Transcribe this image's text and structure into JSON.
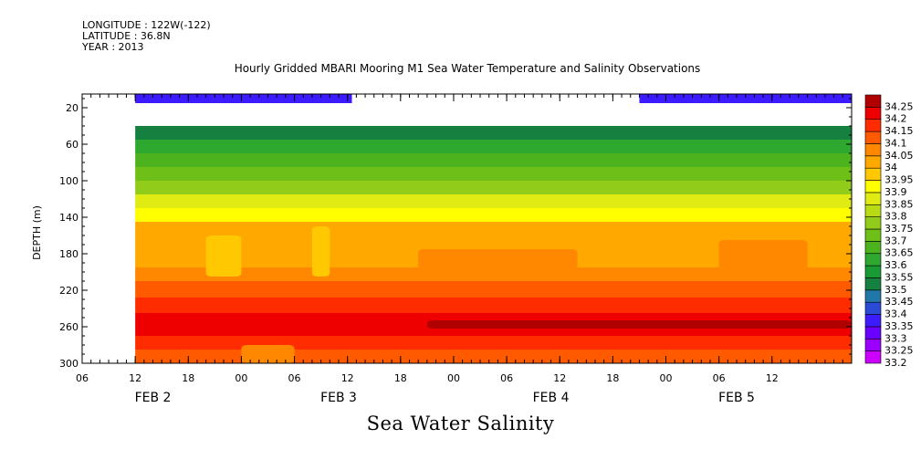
{
  "header": {
    "longitude": "LONGITUDE : 122W(-122)",
    "latitude": "LATITUDE : 36.8N",
    "year": "YEAR : 2013"
  },
  "chart_data": {
    "type": "heatmap",
    "title": "Hourly Gridded MBARI Mooring M1 Sea Water Temperature and Salinity Observations",
    "subtitle": "Sea Water Salinity",
    "ylabel": "DEPTH (m)",
    "ylim": [
      300,
      5
    ],
    "y_ticks": [
      20,
      60,
      100,
      140,
      180,
      220,
      260,
      300
    ],
    "xlim_hours": [
      0,
      87
    ],
    "x_ticks": [
      {
        "hour": 0,
        "label": "06"
      },
      {
        "hour": 6,
        "label": "12"
      },
      {
        "hour": 12,
        "label": "18"
      },
      {
        "hour": 18,
        "label": "00"
      },
      {
        "hour": 24,
        "label": "06"
      },
      {
        "hour": 30,
        "label": "12"
      },
      {
        "hour": 36,
        "label": "18"
      },
      {
        "hour": 42,
        "label": "00"
      },
      {
        "hour": 48,
        "label": "06"
      },
      {
        "hour": 54,
        "label": "12"
      },
      {
        "hour": 60,
        "label": "18"
      },
      {
        "hour": 66,
        "label": "00"
      },
      {
        "hour": 72,
        "label": "06"
      },
      {
        "hour": 78,
        "label": "12"
      }
    ],
    "day_labels": [
      {
        "hour": 8,
        "label": "FEB  2"
      },
      {
        "hour": 29,
        "label": "FEB  3"
      },
      {
        "hour": 53,
        "label": "FEB  4"
      },
      {
        "hour": 74,
        "label": "FEB  5"
      }
    ],
    "levels": [
      33.2,
      33.25,
      33.3,
      33.35,
      33.4,
      33.45,
      33.5,
      33.55,
      33.6,
      33.65,
      33.7,
      33.75,
      33.8,
      33.85,
      33.9,
      33.95,
      34,
      34.05,
      34.1,
      34.15,
      34.2,
      34.25
    ],
    "level_labels": [
      "33.2",
      "33.25",
      "33.3",
      "33.35",
      "33.4",
      "33.45",
      "33.5",
      "33.55",
      "33.6",
      "33.65",
      "33.7",
      "33.75",
      "33.8",
      "33.85",
      "33.9",
      "33.95",
      "34",
      "34.05",
      "34.1",
      "34.15",
      "34.2",
      "34.25"
    ],
    "colors": [
      "#cc00ff",
      "#9b00ff",
      "#6a00ff",
      "#3c1cff",
      "#2b4bd6",
      "#2277aa",
      "#158040",
      "#1a9a35",
      "#2ea82e",
      "#4cb31e",
      "#6ec019",
      "#92cc1a",
      "#b8db16",
      "#dfeb12",
      "#ffff00",
      "#ffc800",
      "#ffa800",
      "#ff8800",
      "#ff5a00",
      "#ff2c00",
      "#ee0000",
      "#b00000"
    ],
    "surface_data": {
      "depth_m": 10,
      "segments": [
        {
          "start_hour": 6,
          "end_hour": 30.5,
          "value": 33.37
        },
        {
          "start_hour": 63,
          "end_hour": 87,
          "value": 33.37
        }
      ]
    },
    "profile_start_hour": 6,
    "profile_top_depth_m": 40,
    "depth_bands_m": [
      {
        "depth": 40,
        "value": 33.53
      },
      {
        "depth": 55,
        "value": 33.6
      },
      {
        "depth": 70,
        "value": 33.65
      },
      {
        "depth": 85,
        "value": 33.72
      },
      {
        "depth": 100,
        "value": 33.78
      },
      {
        "depth": 115,
        "value": 33.86
      },
      {
        "depth": 130,
        "value": 33.92
      },
      {
        "depth": 145,
        "value": 34.0
      },
      {
        "depth": 175,
        "value": 34.0
      },
      {
        "depth": 195,
        "value": 34.05
      },
      {
        "depth": 210,
        "value": 34.1
      },
      {
        "depth": 228,
        "value": 34.15
      },
      {
        "depth": 245,
        "value": 34.22
      },
      {
        "depth": 270,
        "value": 34.15
      },
      {
        "depth": 285,
        "value": 34.1
      }
    ],
    "features": [
      {
        "start_hour": 14,
        "end_hour": 18,
        "top_depth": 160,
        "bottom_depth": 205,
        "value": 33.95
      },
      {
        "start_hour": 26,
        "end_hour": 28,
        "top_depth": 150,
        "bottom_depth": 205,
        "value": 33.95
      },
      {
        "start_hour": 38,
        "end_hour": 56,
        "top_depth": 175,
        "bottom_depth": 205,
        "value": 34.05
      },
      {
        "start_hour": 72,
        "end_hour": 82,
        "top_depth": 165,
        "bottom_depth": 205,
        "value": 34.05
      },
      {
        "start_hour": 39,
        "end_hour": 87,
        "top_depth": 253,
        "bottom_depth": 262,
        "value": 34.25
      },
      {
        "start_hour": 18,
        "end_hour": 24,
        "top_depth": 280,
        "bottom_depth": 300,
        "value": 34.05
      }
    ]
  }
}
